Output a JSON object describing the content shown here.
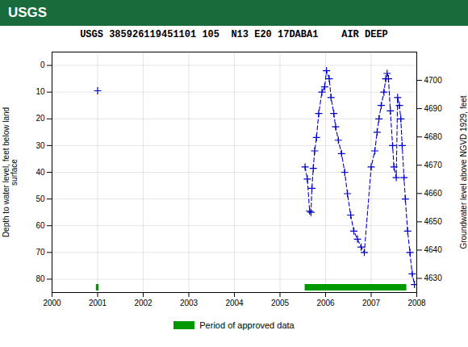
{
  "chart_data": {
    "type": "line",
    "title": "USGS 385926119451101 105  N13 E20 17DABA1    AIR DEEP",
    "annotations": [
      {
        "text": "USGS",
        "color": "#1a6b3c"
      }
    ],
    "ylabel": "Depth to water level, feet below land\nsurface",
    "y2label": "Groundwater level above NGVD 1929, feet",
    "xlim": [
      2000,
      2008
    ],
    "xticks": [
      2000,
      2001,
      2002,
      2003,
      2004,
      2005,
      2006,
      2007,
      2008
    ],
    "ylim": [
      85,
      -5
    ],
    "yticks": [
      0,
      10,
      20,
      30,
      40,
      50,
      60,
      70,
      80
    ],
    "y2lim": [
      4625,
      4710
    ],
    "y2ticks": [
      4630,
      4640,
      4650,
      4660,
      4670,
      4680,
      4690,
      4700
    ],
    "grid": true,
    "legend": "bottom",
    "series": [
      {
        "type": "line",
        "color": "#0000cc",
        "line_style": "dashed",
        "marker": "plus",
        "x": [
          2001.0
        ],
        "values": [
          9.5
        ]
      },
      {
        "type": "line",
        "color": "#0000cc",
        "line_style": "dashed",
        "marker": "plus",
        "x": [
          2005.55,
          2005.6,
          2005.65,
          2005.68,
          2005.7,
          2005.73,
          2005.76,
          2005.8,
          2005.85,
          2005.92,
          2005.98,
          2006.02,
          2006.08,
          2006.12,
          2006.18,
          2006.22,
          2006.28,
          2006.35,
          2006.42,
          2006.48,
          2006.55,
          2006.62,
          2006.7,
          2006.78,
          2006.85,
          2007.0,
          2007.08,
          2007.13,
          2007.17,
          2007.22,
          2007.28,
          2007.32,
          2007.35,
          2007.38,
          2007.42,
          2007.47,
          2007.5,
          2007.55,
          2007.58,
          2007.62,
          2007.65,
          2007.68,
          2007.72,
          2007.75,
          2007.8,
          2007.85,
          2007.9,
          2007.95
        ],
        "values": [
          38.0,
          42.5,
          54.5,
          55.0,
          46.0,
          38.5,
          32.0,
          27.0,
          18.0,
          10.0,
          8.0,
          2.0,
          5.0,
          12.0,
          18.0,
          23.0,
          28.0,
          33.0,
          40.0,
          48.0,
          56.0,
          62.0,
          65.0,
          68.0,
          70.0,
          38.0,
          32.0,
          25.0,
          20.0,
          15.0,
          10.0,
          5.0,
          3.0,
          5.0,
          17.0,
          30.0,
          38.0,
          42.0,
          12.0,
          15.0,
          20.0,
          30.0,
          42.0,
          50.0,
          62.0,
          70.0,
          78.0,
          82.0
        ]
      },
      {
        "name": "Period of approved data",
        "type": "span",
        "color": "#009900",
        "ranges": [
          [
            2000.97,
            2001.03
          ],
          [
            2005.55,
            2007.78
          ]
        ]
      }
    ]
  }
}
